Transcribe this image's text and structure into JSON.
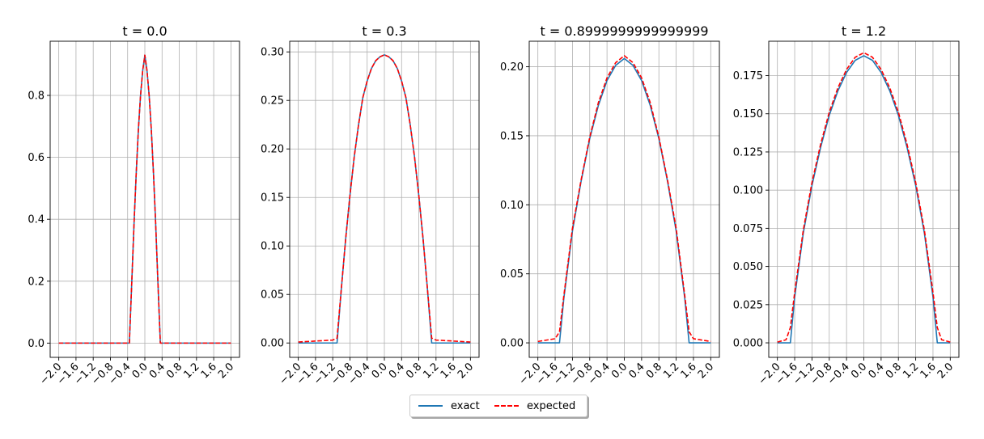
{
  "legend": {
    "exact_label": "exact",
    "expected_label": "expected"
  },
  "colors": {
    "exact": "#1f77b4",
    "expected": "#ff0000",
    "grid": "#b0b0b0"
  },
  "chart_data": [
    {
      "type": "line",
      "title": "t = 0.0",
      "xlim": [
        -2.2,
        2.2
      ],
      "ylim": [
        -0.046,
        0.975
      ],
      "xticks": [
        -2.0,
        -1.6,
        -1.2,
        -0.8,
        -0.4,
        0.0,
        0.4,
        0.8,
        1.2,
        1.6,
        2.0
      ],
      "xtick_labels": [
        "−2.0",
        "−1.6",
        "−1.2",
        "−0.8",
        "−0.4",
        "0.0",
        "0.4",
        "0.8",
        "1.2",
        "1.6",
        "2.0"
      ],
      "yticks": [
        0.0,
        0.2,
        0.4,
        0.6,
        0.8
      ],
      "ytick_labels": [
        "0.0",
        "0.2",
        "0.4",
        "0.6",
        "0.8"
      ],
      "grid": true,
      "series": [
        {
          "name": "exact",
          "style": "solid",
          "x": [
            -2.0,
            -0.36,
            -0.3,
            -0.25,
            -0.2,
            -0.15,
            -0.1,
            -0.05,
            0.0,
            0.05,
            0.1,
            0.15,
            0.2,
            0.25,
            0.3,
            0.36,
            2.0
          ],
          "y": [
            0,
            0,
            0.21,
            0.39,
            0.55,
            0.69,
            0.8,
            0.88,
            0.93,
            0.88,
            0.8,
            0.69,
            0.55,
            0.39,
            0.21,
            0,
            0
          ]
        },
        {
          "name": "expected",
          "style": "dashed",
          "x": [
            -2.0,
            -0.36,
            -0.3,
            -0.25,
            -0.2,
            -0.15,
            -0.1,
            -0.05,
            0.0,
            0.05,
            0.1,
            0.15,
            0.2,
            0.25,
            0.3,
            0.36,
            2.0
          ],
          "y": [
            0,
            0,
            0.21,
            0.39,
            0.55,
            0.69,
            0.8,
            0.88,
            0.93,
            0.88,
            0.8,
            0.69,
            0.55,
            0.39,
            0.21,
            0,
            0
          ]
        }
      ]
    },
    {
      "type": "line",
      "title": "t = 0.3",
      "xlim": [
        -2.2,
        2.2
      ],
      "ylim": [
        -0.0148,
        0.311
      ],
      "xticks": [
        -2.0,
        -1.6,
        -1.2,
        -0.8,
        -0.4,
        0.0,
        0.4,
        0.8,
        1.2,
        1.6,
        2.0
      ],
      "xtick_labels": [
        "−2.0",
        "−1.6",
        "−1.2",
        "−0.8",
        "−0.4",
        "0.0",
        "0.4",
        "0.8",
        "1.2",
        "1.6",
        "2.0"
      ],
      "yticks": [
        0.0,
        0.05,
        0.1,
        0.15,
        0.2,
        0.25,
        0.3
      ],
      "ytick_labels": [
        "0.00",
        "0.05",
        "0.10",
        "0.15",
        "0.20",
        "0.25",
        "0.30"
      ],
      "grid": true,
      "series": [
        {
          "name": "exact",
          "style": "solid",
          "x": [
            -2.0,
            -1.1,
            -1.0,
            -0.9,
            -0.8,
            -0.7,
            -0.6,
            -0.5,
            -0.4,
            -0.3,
            -0.2,
            -0.1,
            0.0,
            0.1,
            0.2,
            0.3,
            0.4,
            0.5,
            0.6,
            0.7,
            0.8,
            0.9,
            1.0,
            1.1,
            2.0
          ],
          "y": [
            0,
            0,
            0.056,
            0.107,
            0.152,
            0.192,
            0.225,
            0.253,
            0.27,
            0.283,
            0.291,
            0.295,
            0.297,
            0.295,
            0.291,
            0.283,
            0.27,
            0.253,
            0.225,
            0.192,
            0.152,
            0.107,
            0.056,
            0,
            0
          ]
        },
        {
          "name": "expected",
          "style": "dashed",
          "x": [
            -2.0,
            -1.6,
            -1.2,
            -1.1,
            -1.0,
            -0.9,
            -0.8,
            -0.7,
            -0.6,
            -0.5,
            -0.4,
            -0.3,
            -0.2,
            -0.1,
            0.0,
            0.1,
            0.2,
            0.3,
            0.4,
            0.5,
            0.6,
            0.7,
            0.8,
            0.9,
            1.0,
            1.1,
            1.2,
            1.6,
            2.0
          ],
          "y": [
            0.001,
            0.002,
            0.003,
            0.005,
            0.056,
            0.107,
            0.152,
            0.192,
            0.225,
            0.253,
            0.27,
            0.283,
            0.291,
            0.295,
            0.297,
            0.295,
            0.291,
            0.283,
            0.27,
            0.253,
            0.225,
            0.192,
            0.152,
            0.107,
            0.056,
            0.005,
            0.003,
            0.002,
            0.001
          ]
        }
      ]
    },
    {
      "type": "line",
      "title": "t = 0.8999999999999999",
      "xlim": [
        -2.2,
        2.2
      ],
      "ylim": [
        -0.0105,
        0.2185
      ],
      "xticks": [
        -2.0,
        -1.6,
        -1.2,
        -0.8,
        -0.4,
        0.0,
        0.4,
        0.8,
        1.2,
        1.6,
        2.0
      ],
      "xtick_labels": [
        "−2.0",
        "−1.6",
        "−1.2",
        "−0.8",
        "−0.4",
        "0.0",
        "0.4",
        "0.8",
        "1.2",
        "1.6",
        "2.0"
      ],
      "yticks": [
        0.0,
        0.05,
        0.1,
        0.15,
        0.2
      ],
      "ytick_labels": [
        "0.00",
        "0.05",
        "0.10",
        "0.15",
        "0.20"
      ],
      "grid": true,
      "series": [
        {
          "name": "exact",
          "style": "solid",
          "x": [
            -2.0,
            -1.5,
            -1.4,
            -1.2,
            -1.0,
            -0.8,
            -0.6,
            -0.4,
            -0.2,
            0.0,
            0.2,
            0.4,
            0.6,
            0.8,
            1.0,
            1.2,
            1.4,
            1.5,
            2.0
          ],
          "y": [
            0,
            0,
            0.032,
            0.081,
            0.117,
            0.148,
            0.172,
            0.19,
            0.201,
            0.206,
            0.201,
            0.19,
            0.172,
            0.148,
            0.117,
            0.081,
            0.032,
            0,
            0
          ]
        },
        {
          "name": "expected",
          "style": "dashed",
          "x": [
            -2.0,
            -1.6,
            -1.5,
            -1.4,
            -1.2,
            -1.0,
            -0.8,
            -0.6,
            -0.4,
            -0.2,
            0.0,
            0.2,
            0.4,
            0.6,
            0.8,
            1.0,
            1.2,
            1.4,
            1.5,
            1.6,
            2.0
          ],
          "y": [
            0.001,
            0.003,
            0.008,
            0.034,
            0.083,
            0.118,
            0.149,
            0.174,
            0.192,
            0.203,
            0.208,
            0.203,
            0.192,
            0.174,
            0.149,
            0.118,
            0.083,
            0.034,
            0.008,
            0.003,
            0.001
          ]
        }
      ]
    },
    {
      "type": "line",
      "title": "t = 1.2",
      "xlim": [
        -2.2,
        2.2
      ],
      "ylim": [
        -0.0095,
        0.1975
      ],
      "xticks": [
        -2.0,
        -1.6,
        -1.2,
        -0.8,
        -0.4,
        0.0,
        0.4,
        0.8,
        1.2,
        1.6,
        2.0
      ],
      "xtick_labels": [
        "−2.0",
        "−1.6",
        "−1.2",
        "−0.8",
        "−0.4",
        "0.0",
        "0.4",
        "0.8",
        "1.2",
        "1.6",
        "2.0"
      ],
      "yticks": [
        0.0,
        0.025,
        0.05,
        0.075,
        0.1,
        0.125,
        0.15,
        0.175
      ],
      "ytick_labels": [
        "0.000",
        "0.025",
        "0.050",
        "0.075",
        "0.100",
        "0.125",
        "0.150",
        "0.175"
      ],
      "grid": true,
      "series": [
        {
          "name": "exact",
          "style": "solid",
          "x": [
            -2.0,
            -1.7,
            -1.6,
            -1.4,
            -1.2,
            -1.0,
            -0.8,
            -0.6,
            -0.4,
            -0.2,
            0.0,
            0.2,
            0.4,
            0.6,
            0.8,
            1.0,
            1.2,
            1.4,
            1.6,
            1.7,
            2.0
          ],
          "y": [
            0,
            0,
            0.03,
            0.072,
            0.103,
            0.128,
            0.149,
            0.165,
            0.177,
            0.185,
            0.188,
            0.185,
            0.177,
            0.165,
            0.149,
            0.128,
            0.103,
            0.072,
            0.03,
            0,
            0
          ]
        },
        {
          "name": "expected",
          "style": "dashed",
          "x": [
            -2.0,
            -1.8,
            -1.7,
            -1.6,
            -1.4,
            -1.2,
            -1.0,
            -0.8,
            -0.6,
            -0.4,
            -0.2,
            0.0,
            0.2,
            0.4,
            0.6,
            0.8,
            1.0,
            1.2,
            1.4,
            1.6,
            1.7,
            1.8,
            2.0
          ],
          "y": [
            0.0005,
            0.002,
            0.01,
            0.033,
            0.074,
            0.105,
            0.13,
            0.151,
            0.167,
            0.179,
            0.187,
            0.19,
            0.187,
            0.179,
            0.167,
            0.151,
            0.13,
            0.105,
            0.074,
            0.033,
            0.01,
            0.002,
            0.0005
          ]
        }
      ]
    }
  ]
}
